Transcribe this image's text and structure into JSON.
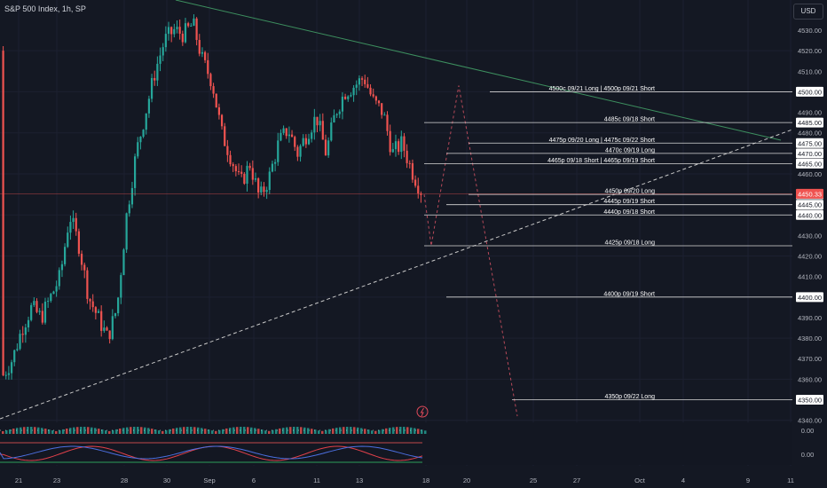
{
  "header": {
    "title": "S&P 500 Index, 1h, SP",
    "currency": "USD"
  },
  "chart_data": {
    "type": "candlestick",
    "title": "S&P 500 Index, 1h, SP",
    "ylim": [
      4333,
      4537
    ],
    "y_ticks": [
      4340,
      4350,
      4360,
      4370,
      4380,
      4390,
      4400,
      4410,
      4420,
      4430,
      4440,
      4445,
      4450,
      4460,
      4465,
      4470,
      4475,
      4480,
      4485,
      4490,
      4500,
      4510,
      4520,
      4530
    ],
    "x_ticks": [
      "21",
      "23",
      "28",
      "30",
      "Sep",
      "6",
      "11",
      "13",
      "18",
      "20",
      "25",
      "27",
      "Oct",
      "4",
      "9",
      "11"
    ],
    "last_price": "4450.33",
    "levels": [
      {
        "price": 4500,
        "label": "4500c 09/21 Long | 4500p 09/21 Short"
      },
      {
        "price": 4485,
        "label": "4485c 09/18 Short"
      },
      {
        "price": 4475,
        "label": "4475p 09/20 Long | 4475c 09/22 Short"
      },
      {
        "price": 4470,
        "label": "4470c 09/19 Long"
      },
      {
        "price": 4465,
        "label": "4465p 09/18 Short | 4465p 09/19 Short"
      },
      {
        "price": 4450,
        "label": "4450p 09/20 Long"
      },
      {
        "price": 4445,
        "label": "4445p 09/19 Short"
      },
      {
        "price": 4440,
        "label": "4440p 09/18 Short"
      },
      {
        "price": 4425,
        "label": "4425p 09/18 Long"
      },
      {
        "price": 4400,
        "label": "4400p 09/19 Short"
      },
      {
        "price": 4350,
        "label": "4350p 09/22 Long"
      }
    ],
    "price_path": [
      4520,
      4528,
      4533,
      4515,
      4505,
      4480,
      4468,
      4455,
      4465,
      4448,
      4458,
      4475,
      4482,
      4470,
      4480,
      4488,
      4470,
      4490,
      4500,
      4503,
      4507,
      4495,
      4490,
      4470,
      4475,
      4462,
      4452
    ],
    "projection": [
      {
        "date": "Sep 18",
        "price": 4450
      },
      {
        "date": "Sep 19",
        "price": 4425
      },
      {
        "date": "Sep 20",
        "price": 4503
      },
      {
        "date": "Sep 22",
        "price": 4342
      }
    ],
    "indicator_values": [
      "0.00",
      "0.00"
    ],
    "colors": {
      "up": "#26a69a",
      "down": "#ef5350",
      "trend_resistance": "#3d8f5f",
      "trend_support": "#c8c8c8",
      "projection": "#b84a5a",
      "price_line": "#ef5350"
    }
  }
}
